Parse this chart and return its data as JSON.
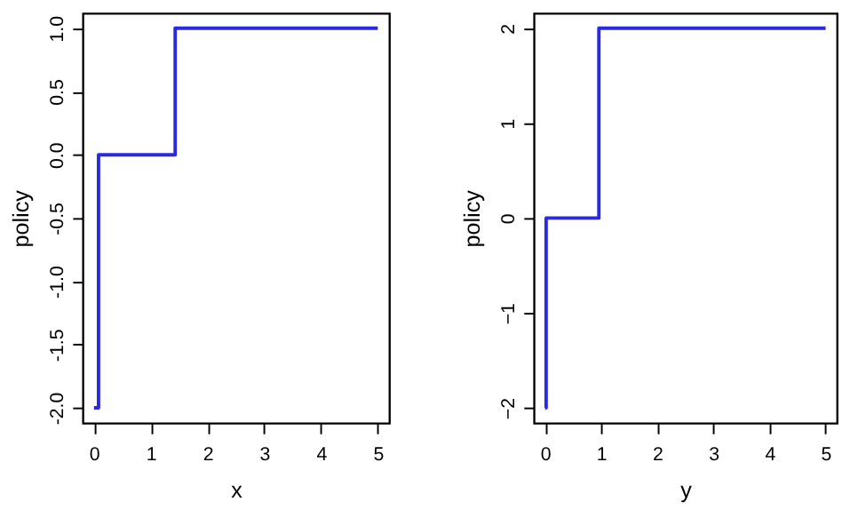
{
  "chart_data": [
    {
      "type": "step",
      "x": [
        0,
        0.08,
        1.43,
        5
      ],
      "values": [
        -2,
        0,
        1,
        1
      ],
      "color": "#2a2ae0",
      "xlabel": "x",
      "ylabel": "policy",
      "xlim": [
        -0.2,
        5.2
      ],
      "xticks": [
        0,
        1,
        2,
        3,
        4,
        5
      ],
      "ylim": [
        -2.12,
        1.12
      ],
      "yticks": [
        {
          "value": -2,
          "label": "-2.0"
        },
        {
          "value": -1.5,
          "label": "-1.5"
        },
        {
          "value": -1,
          "label": "-1.0"
        },
        {
          "value": -0.5,
          "label": "-0.5"
        },
        {
          "value": 0,
          "label": "0.0"
        },
        {
          "value": 0.5,
          "label": "0.5"
        },
        {
          "value": 1,
          "label": "1.0"
        }
      ]
    },
    {
      "type": "step",
      "x": [
        0,
        0.02,
        0.96,
        5
      ],
      "values": [
        -2,
        0,
        2,
        2
      ],
      "color": "#2a2ae0",
      "xlabel": "y",
      "ylabel": "policy",
      "xlim": [
        -0.2,
        5.2
      ],
      "xticks": [
        0,
        1,
        2,
        3,
        4,
        5
      ],
      "ylim": [
        -2.16,
        2.16
      ],
      "yticks": [
        -2,
        -1,
        0,
        1,
        2
      ]
    }
  ]
}
